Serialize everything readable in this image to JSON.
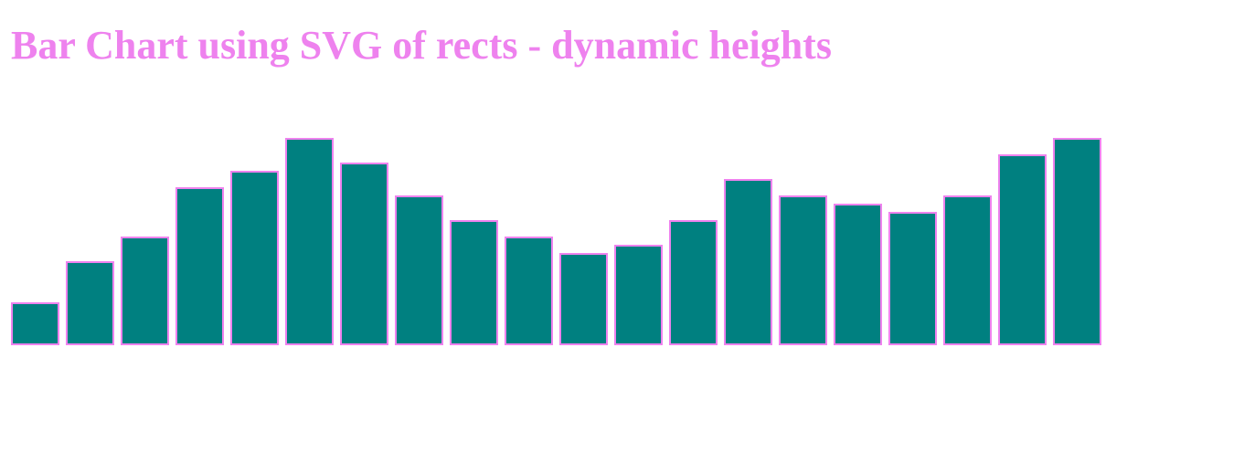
{
  "page": {
    "title": "Bar Chart using SVG of rects - dynamic heights"
  },
  "colors": {
    "title": "#ee82ee",
    "bar_fill": "#008080",
    "bar_stroke": "#ee82ee",
    "background": "#ffffff"
  },
  "chart_data": {
    "type": "bar",
    "title": "",
    "xlabel": "",
    "ylabel": "",
    "categories": [
      "",
      "",
      "",
      "",
      "",
      "",
      "",
      "",
      "",
      "",
      "",
      "",
      "",
      "",
      "",
      "",
      "",
      "",
      "",
      ""
    ],
    "values": [
      5,
      10,
      13,
      19,
      21,
      25,
      22,
      18,
      15,
      13,
      11,
      12,
      15,
      20,
      18,
      17,
      16,
      18,
      23,
      25
    ],
    "ylim": [
      0,
      25
    ],
    "grid": false,
    "legend": "none"
  }
}
